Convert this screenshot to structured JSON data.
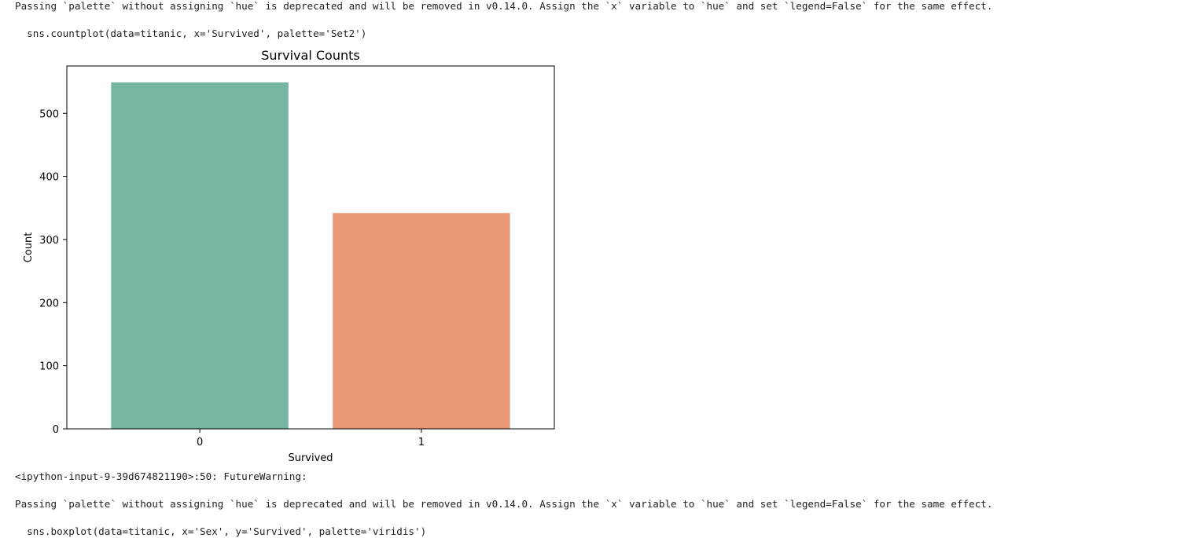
{
  "output": {
    "warning_top": "Passing `palette` without assigning `hue` is deprecated and will be removed in v0.14.0. Assign the `x` variable to `hue` and set `legend=False` for the same effect.",
    "code_line_top": "  sns.countplot(data=titanic, x='Survived', palette='Set2')",
    "input_ref": "<ipython-input-9-39d674821190>:50: FutureWarning:",
    "warning_bottom": "Passing `palette` without assigning `hue` is deprecated and will be removed in v0.14.0. Assign the `x` variable to `hue` and set `legend=False` for the same effect.",
    "code_line_bottom": "  sns.boxplot(data=titanic, x='Sex', y='Survived', palette='viridis')"
  },
  "chart_data": {
    "type": "bar",
    "title": "Survival Counts",
    "xlabel": "Survived",
    "ylabel": "Count",
    "categories": [
      "0",
      "1"
    ],
    "values": [
      549,
      342
    ],
    "colors": [
      "#75b5a1",
      "#e99875"
    ],
    "ylim": [
      0,
      575
    ],
    "yticks": [
      0,
      100,
      200,
      300,
      400,
      500
    ],
    "grid": false,
    "legend": false
  }
}
